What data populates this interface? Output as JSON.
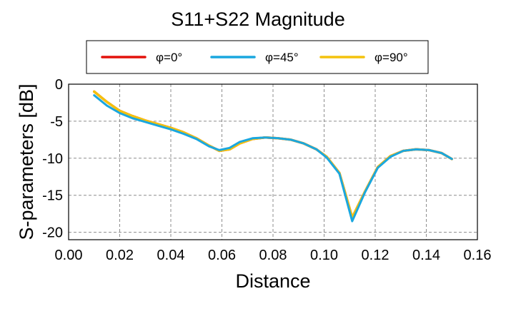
{
  "chart_data": {
    "type": "line",
    "title": "S11+S22 Magnitude",
    "xlabel": "Distance",
    "ylabel": "S-parameters [dB]",
    "xlim": [
      0,
      0.16
    ],
    "ylim": [
      -21,
      0
    ],
    "x_ticks": [
      "0.00",
      "0.02",
      "0.04",
      "0.06",
      "0.08",
      "0.10",
      "0.12",
      "0.14",
      "0.16"
    ],
    "y_ticks": [
      "0",
      "-5",
      "-10",
      "-15",
      "-20"
    ],
    "grid": true,
    "legend_placement": "top",
    "series": [
      {
        "name": "φ=0°",
        "color": "#e3120b",
        "x": [
          0.01,
          0.015,
          0.02,
          0.025,
          0.03,
          0.035,
          0.04,
          0.045,
          0.05,
          0.055,
          0.059,
          0.063,
          0.067,
          0.072,
          0.077,
          0.082,
          0.087,
          0.092,
          0.097,
          0.101,
          0.106,
          0.111,
          0.116,
          0.121,
          0.126,
          0.131,
          0.136,
          0.141,
          0.146,
          0.15
        ],
        "y": [
          -1.0,
          -2.4,
          -3.6,
          -4.3,
          -4.9,
          -5.4,
          -5.9,
          -6.5,
          -7.3,
          -8.3,
          -9.0,
          -8.8,
          -8.0,
          -7.4,
          -7.2,
          -7.3,
          -7.5,
          -8.0,
          -8.8,
          -9.8,
          -12.0,
          -18.0,
          -14.5,
          -11.2,
          -9.7,
          -9.0,
          -8.8,
          -8.9,
          -9.3,
          -10.1
        ]
      },
      {
        "name": "φ=45°",
        "color": "#1aa7df",
        "x": [
          0.01,
          0.015,
          0.02,
          0.025,
          0.03,
          0.035,
          0.04,
          0.045,
          0.05,
          0.055,
          0.059,
          0.063,
          0.067,
          0.072,
          0.077,
          0.082,
          0.087,
          0.092,
          0.097,
          0.101,
          0.106,
          0.111,
          0.116,
          0.121,
          0.126,
          0.131,
          0.136,
          0.141,
          0.146,
          0.15
        ],
        "y": [
          -1.5,
          -2.9,
          -3.9,
          -4.6,
          -5.1,
          -5.6,
          -6.1,
          -6.7,
          -7.4,
          -8.4,
          -8.9,
          -8.6,
          -7.8,
          -7.3,
          -7.2,
          -7.3,
          -7.5,
          -8.0,
          -8.8,
          -9.9,
          -12.1,
          -18.5,
          -14.6,
          -11.3,
          -9.8,
          -9.0,
          -8.8,
          -8.9,
          -9.3,
          -10.1
        ]
      },
      {
        "name": "φ=90°",
        "color": "#f4c20d",
        "x": [
          0.01,
          0.015,
          0.02,
          0.025,
          0.03,
          0.035,
          0.04,
          0.045,
          0.05,
          0.055,
          0.059,
          0.063,
          0.067,
          0.072,
          0.077,
          0.082,
          0.087,
          0.092,
          0.097,
          0.101,
          0.106,
          0.111,
          0.116,
          0.121,
          0.126,
          0.131,
          0.136,
          0.141,
          0.146,
          0.15
        ],
        "y": [
          -1.0,
          -2.4,
          -3.6,
          -4.3,
          -4.9,
          -5.4,
          -5.9,
          -6.5,
          -7.3,
          -8.3,
          -9.0,
          -8.8,
          -8.0,
          -7.4,
          -7.2,
          -7.3,
          -7.5,
          -8.0,
          -8.8,
          -9.8,
          -12.0,
          -18.0,
          -14.5,
          -11.2,
          -9.7,
          -9.0,
          -8.8,
          -8.9,
          -9.3,
          -10.1
        ]
      }
    ]
  }
}
